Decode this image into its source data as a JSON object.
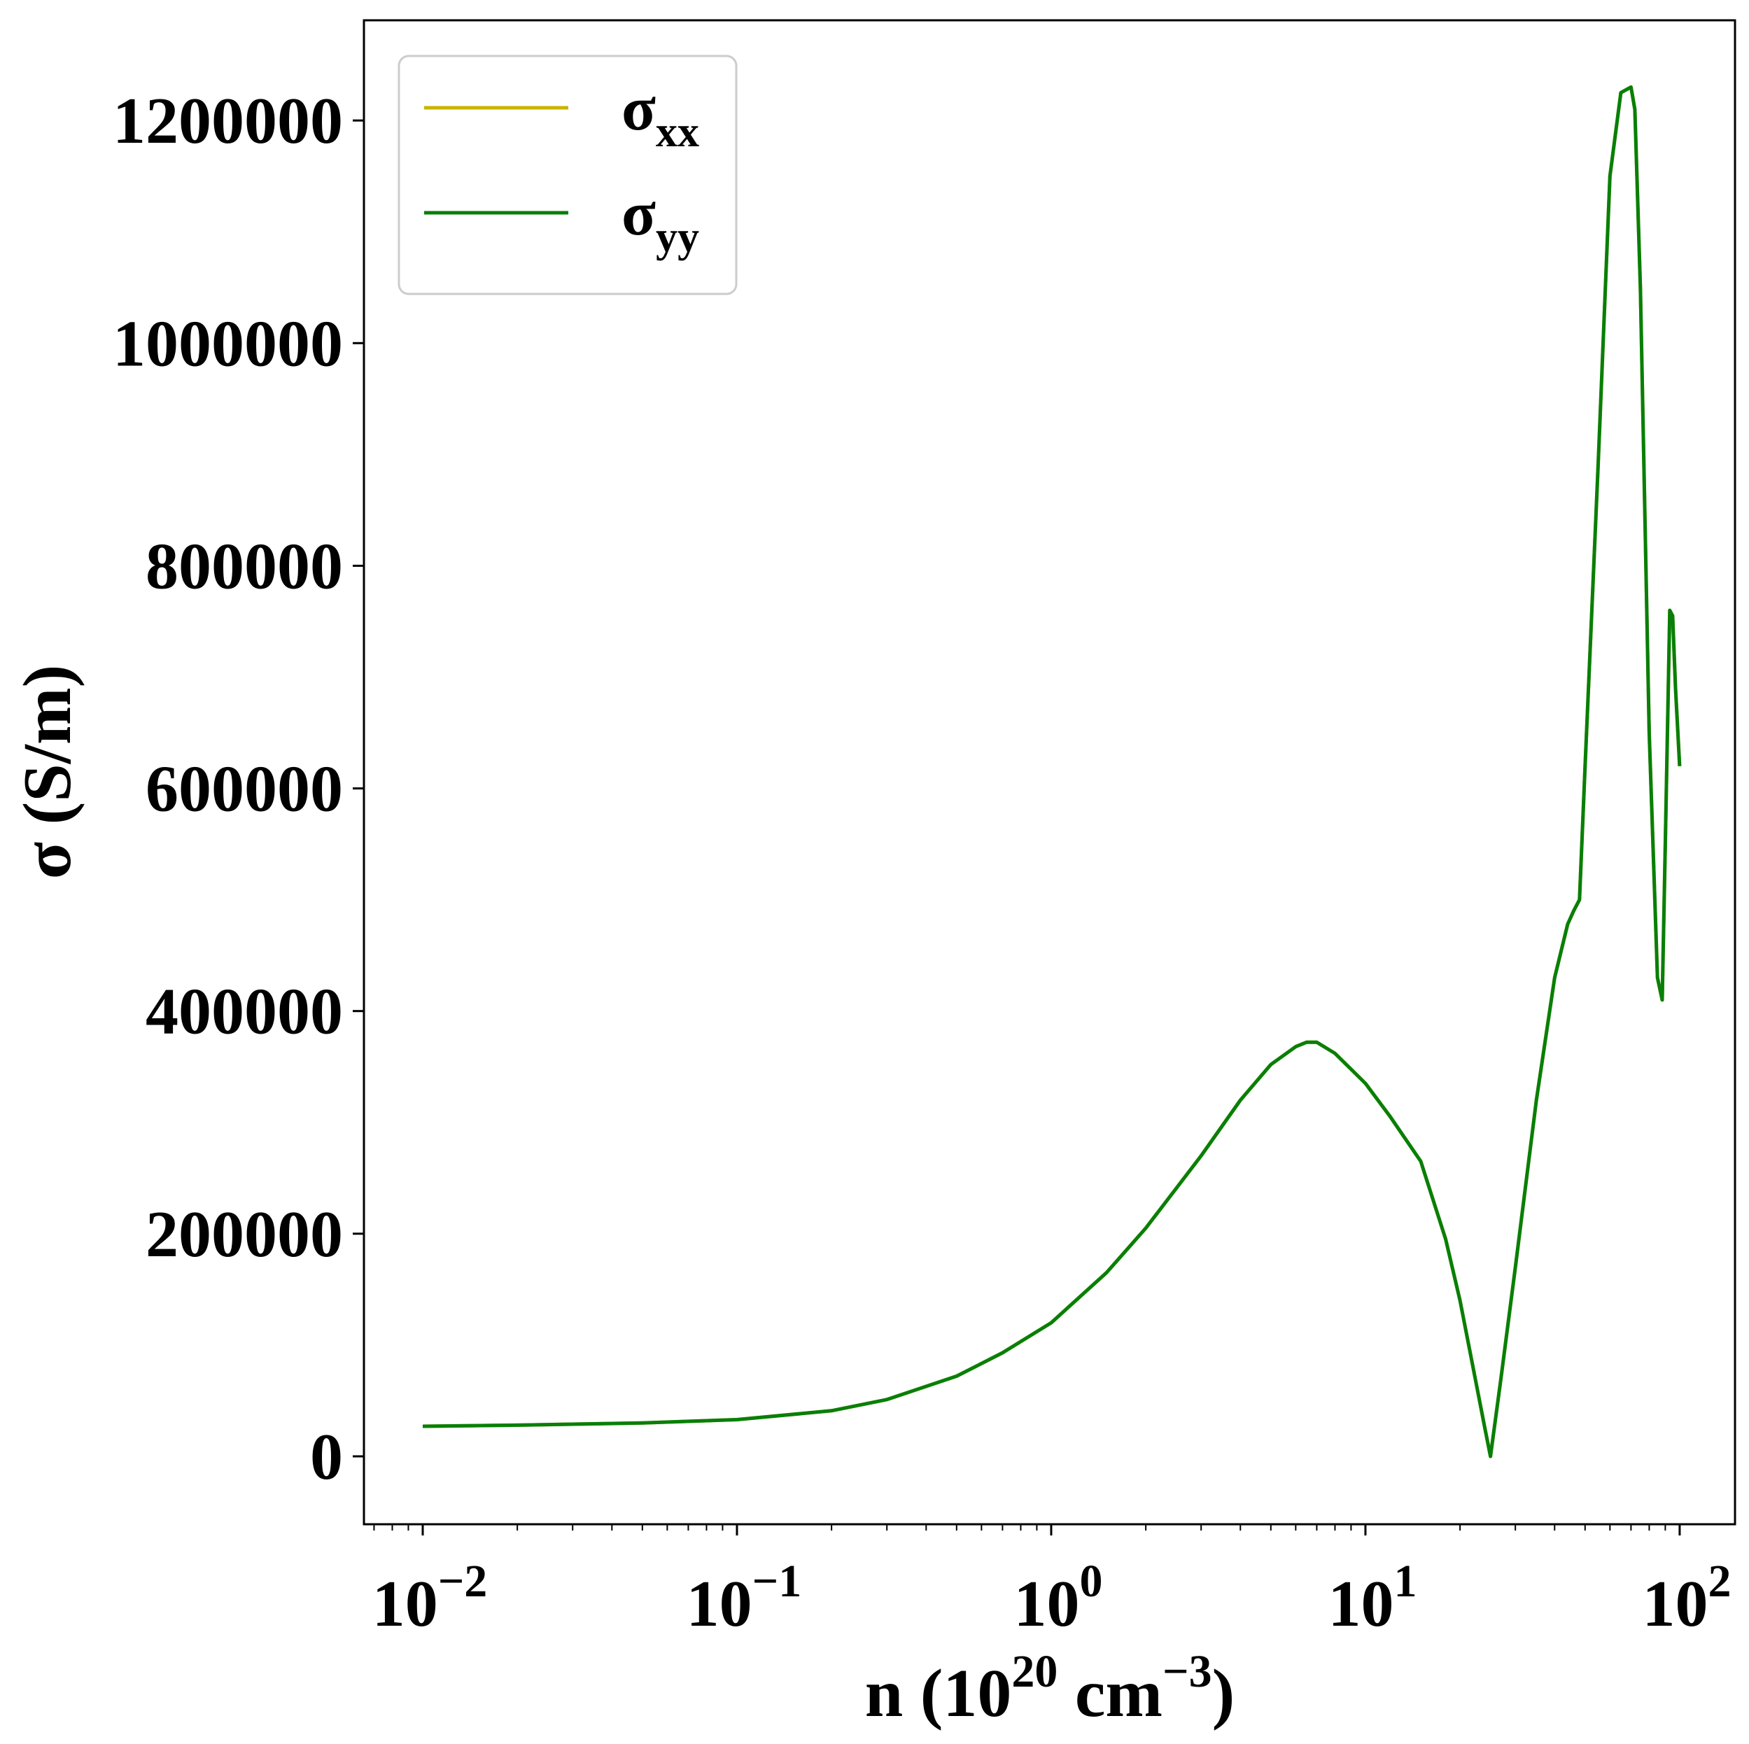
{
  "chart_data": {
    "type": "line",
    "x_scale": "log",
    "xlim": [
      0.0065,
      150
    ],
    "ylim": [
      -61000,
      1290000
    ],
    "grid": false,
    "legend_position": "top-left",
    "xlabel": {
      "prefix": "n (10",
      "sup1": "20",
      "middle": " cm",
      "sup2": "−3",
      "suffix": ")"
    },
    "ylabel": "σ (S/m)",
    "x_ticks": [
      {
        "value": 0.01,
        "base": "10",
        "exp": "−2"
      },
      {
        "value": 0.1,
        "base": "10",
        "exp": "−1"
      },
      {
        "value": 1,
        "base": "10",
        "exp": "0"
      },
      {
        "value": 10,
        "base": "10",
        "exp": "1"
      },
      {
        "value": 100,
        "base": "10",
        "exp": "2"
      }
    ],
    "y_ticks": [
      {
        "value": 0,
        "label": "0"
      },
      {
        "value": 200000,
        "label": "200000"
      },
      {
        "value": 400000,
        "label": "400000"
      },
      {
        "value": 600000,
        "label": "600000"
      },
      {
        "value": 800000,
        "label": "800000"
      },
      {
        "value": 1000000,
        "label": "1000000"
      },
      {
        "value": 1200000,
        "label": "1200000"
      }
    ],
    "series": [
      {
        "name": "σxx",
        "symbol": "σ",
        "subscript": "xx",
        "color": "#c8b400",
        "x": [
          0.01,
          0.02,
          0.05,
          0.1,
          0.2,
          0.3,
          0.5,
          0.7,
          1.0,
          1.5,
          2,
          3,
          4,
          5,
          6,
          6.5,
          7,
          8,
          10,
          12,
          15,
          18,
          20,
          22,
          24,
          25,
          27,
          30,
          35,
          40,
          44,
          46,
          48,
          50,
          55,
          60,
          65,
          70,
          72,
          75,
          80,
          85,
          88,
          90,
          93,
          95,
          97,
          100
        ],
        "y": [
          27000,
          28000,
          30000,
          33000,
          41000,
          51000,
          72000,
          93000,
          120000,
          165000,
          205000,
          270000,
          320000,
          352000,
          368000,
          372000,
          372000,
          362000,
          335000,
          305000,
          265000,
          195000,
          140000,
          80000,
          25000,
          0,
          70000,
          170000,
          320000,
          430000,
          478000,
          490000,
          500000,
          620000,
          890000,
          1150000,
          1225000,
          1230000,
          1210000,
          1050000,
          650000,
          430000,
          410000,
          550000,
          760000,
          755000,
          690000,
          620000
        ]
      },
      {
        "name": "σyy",
        "symbol": "σ",
        "subscript": "yy",
        "color": "#087f08",
        "x": [
          0.01,
          0.02,
          0.05,
          0.1,
          0.2,
          0.3,
          0.5,
          0.7,
          1.0,
          1.5,
          2,
          3,
          4,
          5,
          6,
          6.5,
          7,
          8,
          10,
          12,
          15,
          18,
          20,
          22,
          24,
          25,
          27,
          30,
          35,
          40,
          44,
          46,
          48,
          50,
          55,
          60,
          65,
          70,
          72,
          75,
          80,
          85,
          88,
          90,
          93,
          95,
          97,
          100
        ],
        "y": [
          27000,
          28000,
          30000,
          33000,
          41000,
          51000,
          72000,
          93000,
          120000,
          165000,
          205000,
          270000,
          320000,
          352000,
          368000,
          372000,
          372000,
          362000,
          335000,
          305000,
          265000,
          195000,
          140000,
          80000,
          25000,
          0,
          70000,
          170000,
          320000,
          430000,
          478000,
          490000,
          500000,
          620000,
          890000,
          1150000,
          1225000,
          1230000,
          1210000,
          1050000,
          650000,
          430000,
          410000,
          550000,
          760000,
          755000,
          690000,
          620000
        ]
      }
    ]
  }
}
